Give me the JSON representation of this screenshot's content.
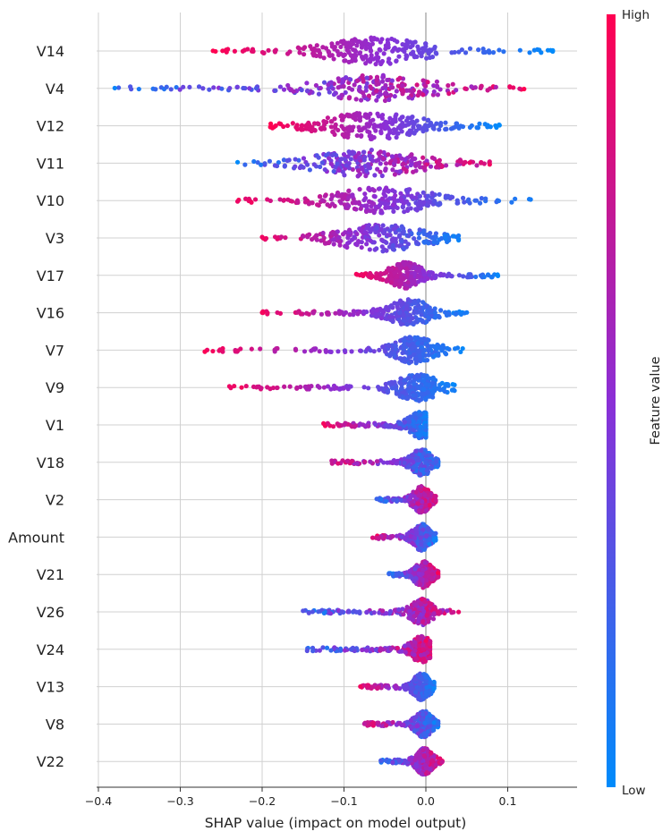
{
  "chart_data": {
    "type": "scatter",
    "subtype": "shap-beeswarm",
    "title": "",
    "xlabel": "SHAP value (impact on model output)",
    "xlim": [
      -0.41,
      0.18
    ],
    "xticks": [
      -0.4,
      -0.3,
      -0.2,
      -0.1,
      0.0,
      0.1
    ],
    "xtick_labels": [
      "−0.4",
      "−0.3",
      "−0.2",
      "−0.1",
      "0.0",
      "0.1"
    ],
    "grid": true,
    "zero_line": true,
    "colorbar": {
      "label": "Feature value",
      "high_label": "High",
      "low_label": "Low",
      "high_color": "#ff0051",
      "low_color": "#008bfb"
    },
    "features": [
      {
        "name": "V14",
        "min": -0.26,
        "max": 0.155,
        "peak": -0.06,
        "spread": 0.045,
        "low_side": "right",
        "mix": 0.0
      },
      {
        "name": "V4",
        "min": -0.38,
        "max": 0.12,
        "peak": -0.06,
        "spread": 0.05,
        "low_side": "left",
        "mix": 0.35
      },
      {
        "name": "V12",
        "min": -0.19,
        "max": 0.09,
        "peak": -0.065,
        "spread": 0.045,
        "low_side": "right",
        "mix": 0.0
      },
      {
        "name": "V11",
        "min": -0.23,
        "max": 0.078,
        "peak": -0.07,
        "spread": 0.05,
        "low_side": "left",
        "mix": 0.3
      },
      {
        "name": "V10",
        "min": -0.23,
        "max": 0.128,
        "peak": -0.05,
        "spread": 0.045,
        "low_side": "right",
        "mix": 0.1
      },
      {
        "name": "V3",
        "min": -0.2,
        "max": 0.04,
        "peak": -0.055,
        "spread": 0.04,
        "low_side": "right",
        "mix": 0.15
      },
      {
        "name": "V17",
        "min": -0.085,
        "max": 0.088,
        "peak": -0.025,
        "spread": 0.015,
        "low_side": "right",
        "mix": 0.1
      },
      {
        "name": "V16",
        "min": -0.2,
        "max": 0.05,
        "peak": -0.02,
        "spread": 0.02,
        "low_side": "right",
        "mix": 0.1
      },
      {
        "name": "V7",
        "min": -0.27,
        "max": 0.045,
        "peak": -0.015,
        "spread": 0.02,
        "low_side": "right",
        "mix": 0.1
      },
      {
        "name": "V9",
        "min": -0.24,
        "max": 0.035,
        "peak": -0.01,
        "spread": 0.02,
        "low_side": "right",
        "mix": 0.1
      },
      {
        "name": "V1",
        "min": -0.125,
        "max": 0.0,
        "peak": -0.005,
        "spread": 0.012,
        "low_side": "right",
        "mix": 0.2
      },
      {
        "name": "V18",
        "min": -0.115,
        "max": 0.015,
        "peak": -0.005,
        "spread": 0.01,
        "low_side": "right",
        "mix": 0.3
      },
      {
        "name": "V2",
        "min": -0.06,
        "max": 0.012,
        "peak": -0.005,
        "spread": 0.008,
        "low_side": "left",
        "mix": 0.3
      },
      {
        "name": "Amount",
        "min": -0.065,
        "max": 0.012,
        "peak": -0.005,
        "spread": 0.008,
        "low_side": "right",
        "mix": 0.3
      },
      {
        "name": "V21",
        "min": -0.045,
        "max": 0.015,
        "peak": -0.003,
        "spread": 0.008,
        "low_side": "left",
        "mix": 0.3
      },
      {
        "name": "V26",
        "min": -0.15,
        "max": 0.04,
        "peak": -0.005,
        "spread": 0.01,
        "low_side": "left",
        "mix": 0.4
      },
      {
        "name": "V24",
        "min": -0.145,
        "max": 0.005,
        "peak": -0.005,
        "spread": 0.01,
        "low_side": "left",
        "mix": 0.4
      },
      {
        "name": "V13",
        "min": -0.08,
        "max": 0.01,
        "peak": -0.005,
        "spread": 0.008,
        "low_side": "right",
        "mix": 0.2
      },
      {
        "name": "V8",
        "min": -0.075,
        "max": 0.015,
        "peak": -0.003,
        "spread": 0.008,
        "low_side": "right",
        "mix": 0.3
      },
      {
        "name": "V22",
        "min": -0.055,
        "max": 0.02,
        "peak": -0.002,
        "spread": 0.008,
        "low_side": "left",
        "mix": 0.3
      }
    ]
  }
}
